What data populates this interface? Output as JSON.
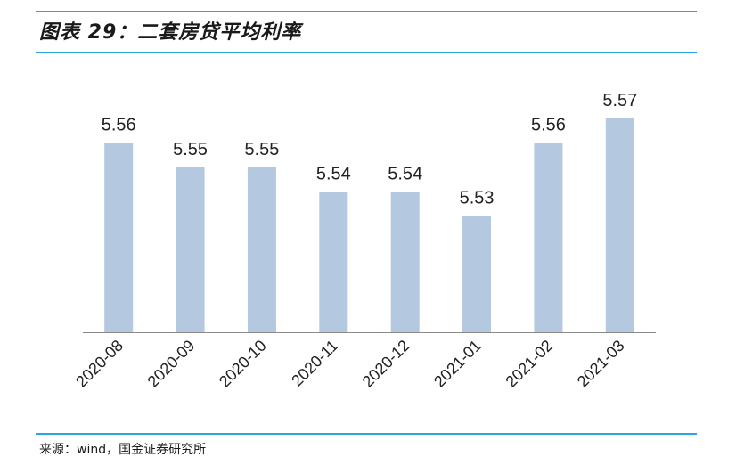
{
  "title": "图表 29：二套房贷平均利率",
  "source": "来源：wind，国金证券研究所",
  "colors": {
    "bar": "#b4c8df",
    "rule": "#29a8df",
    "text": "#222222"
  },
  "chart_data": {
    "type": "bar",
    "title": "",
    "xlabel": "",
    "ylabel": "",
    "categories": [
      "2020-08",
      "2020-09",
      "2020-10",
      "2020-11",
      "2020-12",
      "2021-01",
      "2021-02",
      "2021-03"
    ],
    "values": [
      5.56,
      5.55,
      5.55,
      5.54,
      5.54,
      5.53,
      5.56,
      5.57
    ],
    "value_labels": [
      "5.56",
      "5.55",
      "5.55",
      "5.54",
      "5.54",
      "5.53",
      "5.56",
      "5.57"
    ],
    "ylim": [
      5.4825,
      5.57
    ],
    "grid": false,
    "legend": "none"
  }
}
